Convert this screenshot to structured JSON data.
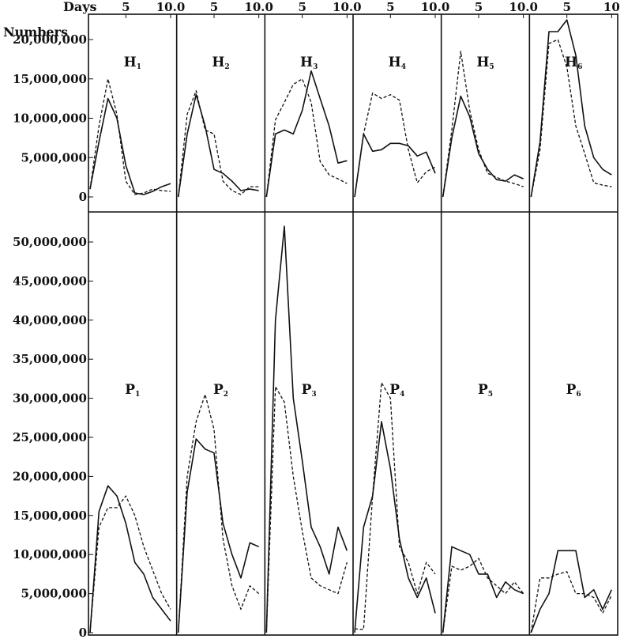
{
  "chart_data": {
    "type": "line",
    "x_axis": {
      "label": "Days",
      "ticks": [
        {
          "x": 5,
          "label": "5"
        },
        {
          "x": 10,
          "label": "10"
        }
      ],
      "top_labels": [
        "5",
        "10.0",
        "5",
        "10.0",
        "5",
        "10.0",
        "5",
        "10.0",
        "5",
        "10.0",
        "5",
        "10"
      ],
      "xlim": [
        1,
        10.5
      ]
    },
    "y_axis_label": "Numbers",
    "panel_groups": [
      {
        "id": "H",
        "ylim": [
          0,
          20000000
        ],
        "ticks": [
          {
            "v": 20000000,
            "label": "20,000,000"
          },
          {
            "v": 15000000,
            "label": "15,000,000"
          },
          {
            "v": 10000000,
            "label": "10,000,000"
          },
          {
            "v": 5000000,
            "label": "5,000,000"
          },
          {
            "v": 0,
            "label": "0"
          }
        ],
        "panels": [
          {
            "title": "H",
            "sub": "1",
            "series": [
              {
                "style": "solid",
                "x": [
                  1,
                  2,
                  3,
                  4,
                  5,
                  6,
                  7,
                  8,
                  9,
                  10
                ],
                "y": [
                  1000000,
                  7000000,
                  12500000,
                  10000000,
                  4000000,
                  500000,
                  300000,
                  700000,
                  1300000,
                  1700000
                ]
              },
              {
                "style": "dashed",
                "x": [
                  1,
                  2,
                  3,
                  4,
                  5,
                  6,
                  7,
                  8,
                  9,
                  10
                ],
                "y": [
                  1000000,
                  9000000,
                  15000000,
                  10500000,
                  2000000,
                  300000,
                  500000,
                  1000000,
                  800000,
                  700000
                ]
              }
            ]
          },
          {
            "title": "H",
            "sub": "2",
            "series": [
              {
                "style": "solid",
                "x": [
                  1,
                  2,
                  3,
                  4,
                  5,
                  6,
                  7,
                  8,
                  9,
                  10
                ],
                "y": [
                  0,
                  8000000,
                  13000000,
                  9000000,
                  3500000,
                  3000000,
                  2000000,
                  800000,
                  1000000,
                  800000
                ]
              },
              {
                "style": "dashed",
                "x": [
                  1,
                  2,
                  3,
                  4,
                  5,
                  6,
                  7,
                  8,
                  9,
                  10
                ],
                "y": [
                  0,
                  10500000,
                  13500000,
                  8500000,
                  8000000,
                  2000000,
                  800000,
                  300000,
                  1300000,
                  1300000
                ]
              }
            ]
          },
          {
            "title": "H",
            "sub": "3",
            "series": [
              {
                "style": "solid",
                "x": [
                  1,
                  2,
                  3,
                  4,
                  5,
                  6,
                  7,
                  8,
                  9,
                  10
                ],
                "y": [
                  0,
                  8000000,
                  8500000,
                  8000000,
                  11000000,
                  16000000,
                  12500000,
                  9000000,
                  4300000,
                  4600000
                ]
              },
              {
                "style": "dashed",
                "x": [
                  1,
                  2,
                  3,
                  4,
                  5,
                  6,
                  7,
                  8,
                  9,
                  10
                ],
                "y": [
                  0,
                  9800000,
                  12000000,
                  14300000,
                  15000000,
                  12000000,
                  4500000,
                  2800000,
                  2300000,
                  1700000
                ]
              }
            ]
          },
          {
            "title": "H",
            "sub": "4",
            "series": [
              {
                "style": "solid",
                "x": [
                  1,
                  2,
                  3,
                  4,
                  5,
                  6,
                  7,
                  8,
                  9,
                  10
                ],
                "y": [
                  0,
                  8000000,
                  5800000,
                  6000000,
                  6800000,
                  6800000,
                  6500000,
                  5200000,
                  5700000,
                  3000000
                ]
              },
              {
                "style": "dashed",
                "x": [
                  1,
                  2,
                  3,
                  4,
                  5,
                  6,
                  7,
                  8,
                  9,
                  10
                ],
                "y": [
                  0,
                  8000000,
                  13200000,
                  12500000,
                  13000000,
                  12300000,
                  6000000,
                  1800000,
                  3200000,
                  3800000
                ]
              }
            ]
          },
          {
            "title": "H",
            "sub": "5",
            "series": [
              {
                "style": "solid",
                "x": [
                  1,
                  2,
                  3,
                  4,
                  5,
                  6,
                  7,
                  8,
                  9,
                  10
                ],
                "y": [
                  0,
                  7500000,
                  12800000,
                  10200000,
                  5500000,
                  3500000,
                  2200000,
                  2000000,
                  2800000,
                  2300000
                ]
              },
              {
                "style": "dashed",
                "x": [
                  1,
                  2,
                  3,
                  4,
                  5,
                  6,
                  7,
                  8,
                  9,
                  10
                ],
                "y": [
                  0,
                  8500000,
                  18500000,
                  11000000,
                  6000000,
                  3000000,
                  2500000,
                  2000000,
                  1700000,
                  1300000
                ]
              }
            ]
          },
          {
            "title": "H",
            "sub": "6",
            "series": [
              {
                "style": "solid",
                "x": [
                  1,
                  2,
                  3,
                  4,
                  5,
                  6,
                  7,
                  8,
                  9,
                  10
                ],
                "y": [
                  0,
                  7000000,
                  21000000,
                  21000000,
                  22500000,
                  18000000,
                  9000000,
                  5000000,
                  3500000,
                  2800000
                ]
              },
              {
                "style": "dashed",
                "x": [
                  1,
                  2,
                  3,
                  4,
                  5,
                  6,
                  7,
                  8,
                  9,
                  10
                ],
                "y": [
                  0,
                  6000000,
                  19500000,
                  20000000,
                  16500000,
                  9000000,
                  5500000,
                  1800000,
                  1500000,
                  1300000
                ]
              }
            ]
          }
        ]
      },
      {
        "id": "P",
        "ylim": [
          0,
          50000000
        ],
        "ticks": [
          {
            "v": 50000000,
            "label": "50,000,000"
          },
          {
            "v": 45000000,
            "label": "45,000,000"
          },
          {
            "v": 40000000,
            "label": "40,000,000"
          },
          {
            "v": 35000000,
            "label": "35,000,000"
          },
          {
            "v": 30000000,
            "label": "30,000,000"
          },
          {
            "v": 25000000,
            "label": "25,000,000"
          },
          {
            "v": 20000000,
            "label": "20,000,000"
          },
          {
            "v": 15000000,
            "label": "15,000,000"
          },
          {
            "v": 10000000,
            "label": "10,000,000"
          },
          {
            "v": 5000000,
            "label": "5,000,000"
          },
          {
            "v": 0,
            "label": "0"
          }
        ],
        "panels": [
          {
            "title": "P",
            "sub": "1",
            "series": [
              {
                "style": "solid",
                "x": [
                  1,
                  2,
                  3,
                  4,
                  5,
                  6,
                  7,
                  8,
                  9,
                  10
                ],
                "y": [
                  0,
                  15500000,
                  18800000,
                  17500000,
                  14000000,
                  9000000,
                  7500000,
                  4500000,
                  3000000,
                  1500000
                ]
              },
              {
                "style": "dashed",
                "x": [
                  1,
                  2,
                  3,
                  4,
                  5,
                  6,
                  7,
                  8,
                  9,
                  10
                ],
                "y": [
                  0,
                  13500000,
                  16000000,
                  16000000,
                  17500000,
                  15000000,
                  11000000,
                  8000000,
                  5000000,
                  3000000
                ]
              }
            ]
          },
          {
            "title": "P",
            "sub": "2",
            "series": [
              {
                "style": "solid",
                "x": [
                  1,
                  2,
                  3,
                  4,
                  5,
                  6,
                  7,
                  8,
                  9,
                  10
                ],
                "y": [
                  0,
                  18000000,
                  24800000,
                  23500000,
                  23000000,
                  14000000,
                  10000000,
                  7000000,
                  11500000,
                  11000000
                ]
              },
              {
                "style": "dashed",
                "x": [
                  1,
                  2,
                  3,
                  4,
                  5,
                  6,
                  7,
                  8,
                  9,
                  10
                ],
                "y": [
                  0,
                  20000000,
                  27000000,
                  30500000,
                  26000000,
                  12000000,
                  6000000,
                  3000000,
                  6000000,
                  5000000
                ]
              }
            ]
          },
          {
            "title": "P",
            "sub": "3",
            "series": [
              {
                "style": "solid",
                "x": [
                  1,
                  2,
                  3,
                  4,
                  5,
                  6,
                  7,
                  8,
                  9,
                  10
                ],
                "y": [
                  0,
                  40000000,
                  52000000,
                  30000000,
                  22000000,
                  13500000,
                  11000000,
                  7500000,
                  13500000,
                  10500000
                ]
              },
              {
                "style": "dashed",
                "x": [
                  1,
                  2,
                  3,
                  4,
                  5,
                  6,
                  7,
                  8,
                  9,
                  10
                ],
                "y": [
                  0,
                  31500000,
                  29500000,
                  20000000,
                  13000000,
                  7000000,
                  6000000,
                  5500000,
                  5000000,
                  9000000
                ]
              }
            ]
          },
          {
            "title": "P",
            "sub": "4",
            "series": [
              {
                "style": "solid",
                "x": [
                  1,
                  2,
                  3,
                  4,
                  5,
                  6,
                  7,
                  8,
                  9,
                  10
                ],
                "y": [
                  0,
                  13500000,
                  17500000,
                  27000000,
                  21000000,
                  12000000,
                  7000000,
                  4500000,
                  7000000,
                  2500000
                ]
              },
              {
                "style": "dashed",
                "x": [
                  1,
                  2,
                  3,
                  4,
                  5,
                  6,
                  7,
                  8,
                  9,
                  10
                ],
                "y": [
                  500000,
                  400000,
                  17500000,
                  32000000,
                  30000000,
                  11000000,
                  9000000,
                  5000000,
                  9000000,
                  7500000
                ]
              }
            ]
          },
          {
            "title": "P",
            "sub": "5",
            "series": [
              {
                "style": "solid",
                "x": [
                  1,
                  2,
                  3,
                  4,
                  5,
                  6,
                  7,
                  8,
                  9,
                  10
                ],
                "y": [
                  0,
                  11000000,
                  10500000,
                  10000000,
                  7500000,
                  7500000,
                  4500000,
                  6500000,
                  5500000,
                  5000000
                ]
              },
              {
                "style": "dashed",
                "x": [
                  1,
                  2,
                  3,
                  4,
                  5,
                  6,
                  7,
                  8,
                  9,
                  10
                ],
                "y": [
                  0,
                  8500000,
                  8000000,
                  8500000,
                  9500000,
                  7000000,
                  6000000,
                  5000000,
                  6500000,
                  5000000
                ]
              }
            ]
          },
          {
            "title": "P",
            "sub": "6",
            "series": [
              {
                "style": "solid",
                "x": [
                  1,
                  2,
                  3,
                  4,
                  5,
                  6,
                  7,
                  8,
                  9,
                  10
                ],
                "y": [
                  0,
                  3000000,
                  5000000,
                  10500000,
                  10500000,
                  10500000,
                  4500000,
                  5500000,
                  3000000,
                  5500000
                ]
              },
              {
                "style": "dashed",
                "x": [
                  1,
                  2,
                  3,
                  4,
                  5,
                  6,
                  7,
                  8,
                  9,
                  10
                ],
                "y": [
                  0,
                  7000000,
                  7000000,
                  7500000,
                  7800000,
                  5000000,
                  5000000,
                  4500000,
                  2500000,
                  4800000
                ]
              }
            ]
          }
        ]
      }
    ]
  }
}
